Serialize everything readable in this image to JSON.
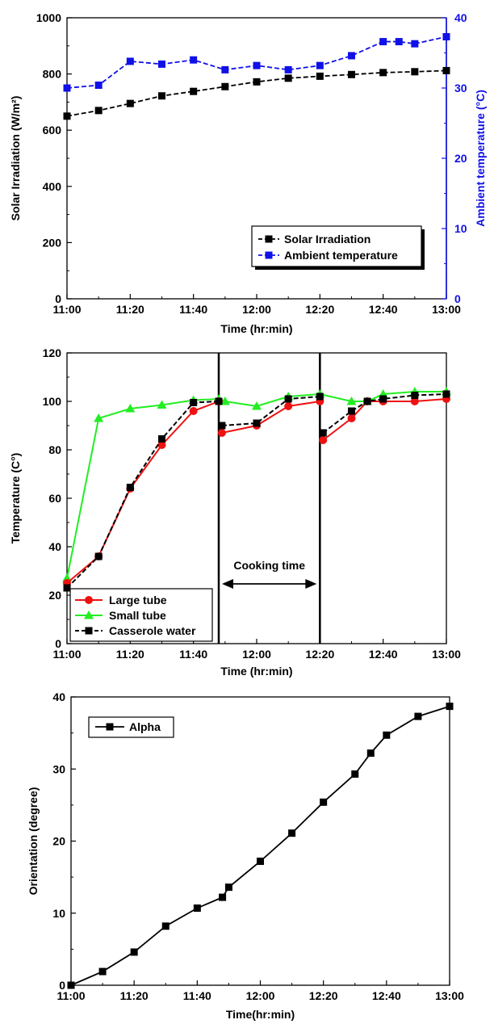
{
  "colors": {
    "black": "#000000",
    "blue": "#1010e8",
    "red": "#ee1111",
    "green": "#22ee22"
  },
  "chart_data": [
    {
      "type": "line",
      "xlabel": "Time (hr:min)",
      "ylabel": "Solar Irradiation (W/m²)",
      "y2label": "Ambient temperature (°C)",
      "xlim": [
        0,
        120
      ],
      "ylim": [
        0,
        1000
      ],
      "y2lim": [
        0,
        40
      ],
      "x_ticks": [
        0,
        20,
        40,
        60,
        80,
        100,
        120
      ],
      "x_tick_labels": [
        "11:00",
        "11:20",
        "11:40",
        "12:00",
        "12:20",
        "12:40",
        "13:00"
      ],
      "y_ticks": [
        0,
        200,
        400,
        600,
        800,
        1000
      ],
      "y_tick_labels": [
        "0",
        "200",
        "400",
        "600",
        "800",
        "1000"
      ],
      "y2_ticks": [
        0,
        10,
        20,
        30,
        40
      ],
      "y2_tick_labels": [
        "0",
        "10",
        "20",
        "30",
        "40"
      ],
      "legend_position": "bottom-right",
      "series": [
        {
          "name": "Solar Irradiation",
          "axis": "left",
          "color": "#000000",
          "marker": "square",
          "x": [
            0,
            10,
            20,
            30,
            40,
            50,
            60,
            70,
            80,
            90,
            100,
            110,
            120
          ],
          "values": [
            650,
            670,
            695,
            722,
            738,
            755,
            772,
            785,
            792,
            798,
            805,
            808,
            812
          ]
        },
        {
          "name": "Ambient temperature",
          "axis": "right",
          "color": "#1010e8",
          "marker": "square",
          "x": [
            0,
            10,
            20,
            30,
            40,
            50,
            60,
            70,
            80,
            90,
            100,
            105,
            110,
            120
          ],
          "values": [
            30.0,
            30.4,
            33.8,
            33.4,
            34.0,
            32.6,
            33.2,
            32.6,
            33.2,
            34.6,
            36.6,
            36.6,
            36.3,
            37.3
          ]
        }
      ]
    },
    {
      "type": "line",
      "xlabel": "Time (hr:min)",
      "ylabel": "Temperature (C°)",
      "xlim": [
        0,
        120
      ],
      "ylim": [
        0,
        120
      ],
      "x_ticks": [
        0,
        20,
        40,
        60,
        80,
        100,
        120
      ],
      "x_tick_labels": [
        "11:00",
        "11:20",
        "11:40",
        "12:00",
        "12:20",
        "12:40",
        "13:00"
      ],
      "y_ticks": [
        0,
        20,
        40,
        60,
        80,
        100,
        120
      ],
      "y_tick_labels": [
        "0",
        "20",
        "40",
        "60",
        "80",
        "100",
        "120"
      ],
      "legend_position": "bottom-left",
      "annotation": "Cooking time",
      "vertical_lines": [
        48,
        80
      ],
      "series": [
        {
          "name": "Large tube",
          "color": "#ee1111",
          "marker": "circle",
          "segments": [
            {
              "x": [
                0,
                10,
                20,
                30,
                40,
                48
              ],
              "values": [
                25,
                36,
                64,
                82,
                96,
                100
              ]
            },
            {
              "x": [
                49,
                60,
                70,
                80
              ],
              "values": [
                87,
                90,
                98,
                100
              ]
            },
            {
              "x": [
                81,
                90,
                95,
                100,
                110,
                120
              ],
              "values": [
                84,
                93,
                100,
                100,
                100,
                101
              ]
            }
          ]
        },
        {
          "name": "Small tube",
          "color": "#22ee22",
          "marker": "triangle",
          "segments": [
            {
              "x": [
                0,
                10,
                20,
                30,
                40,
                48,
                50,
                60,
                70,
                80,
                90,
                95,
                100,
                110,
                120
              ],
              "values": [
                27,
                93,
                97,
                98.5,
                100.5,
                101,
                100,
                98,
                102,
                103,
                100,
                100,
                103,
                104,
                104
              ]
            }
          ]
        },
        {
          "name": "Casserole water",
          "color": "#000000",
          "marker": "square",
          "segments": [
            {
              "x": [
                0,
                10,
                20,
                30,
                40,
                48
              ],
              "values": [
                23,
                36,
                64.5,
                84.5,
                99.5,
                100
              ]
            },
            {
              "x": [
                49,
                60,
                70,
                80
              ],
              "values": [
                90,
                91,
                101,
                102
              ]
            },
            {
              "x": [
                81,
                90,
                95,
                100,
                110,
                120
              ],
              "values": [
                87,
                96,
                100,
                101,
                102.5,
                103
              ]
            }
          ]
        }
      ]
    },
    {
      "type": "line",
      "xlabel": "Time(hr:min)",
      "ylabel": "Orientation (degree)",
      "xlim": [
        0,
        120
      ],
      "ylim": [
        0,
        40
      ],
      "x_ticks": [
        0,
        20,
        40,
        60,
        80,
        100,
        120
      ],
      "x_tick_labels": [
        "11:00",
        "11:20",
        "11:40",
        "12:00",
        "12:20",
        "12:40",
        "13:00"
      ],
      "y_ticks": [
        0,
        10,
        20,
        30,
        40
      ],
      "y_tick_labels": [
        "0",
        "10",
        "20",
        "30",
        "40"
      ],
      "legend_position": "top-left",
      "series": [
        {
          "name": "Alpha",
          "color": "#000000",
          "marker": "square",
          "x": [
            0,
            10,
            20,
            30,
            40,
            48,
            50,
            60,
            70,
            80,
            90,
            95,
            100,
            110,
            120
          ],
          "values": [
            0,
            1.9,
            4.6,
            8.2,
            10.7,
            12.2,
            13.6,
            17.2,
            21.1,
            25.4,
            29.3,
            32.2,
            34.7,
            37.3,
            38.7
          ]
        }
      ]
    }
  ]
}
